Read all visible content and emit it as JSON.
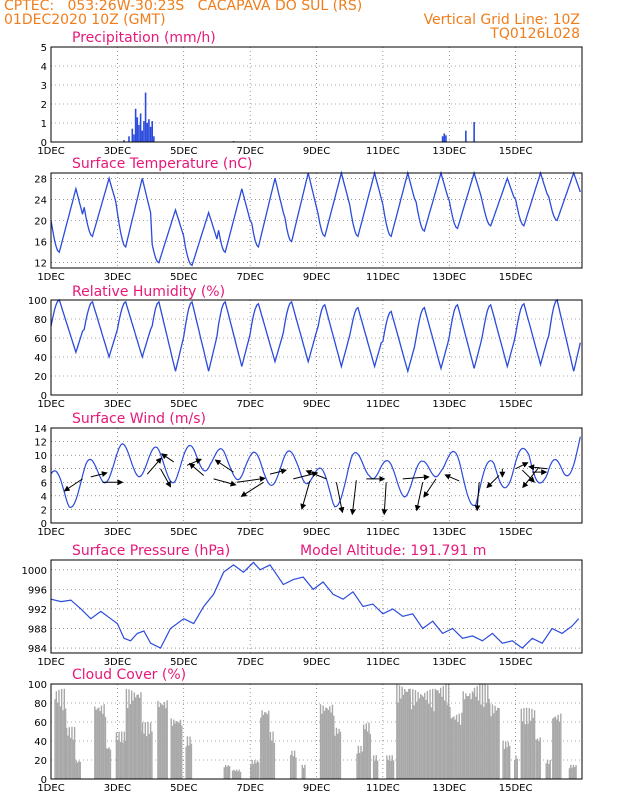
{
  "header": {
    "line1": "CPTEC:   053:26W-30:23S   CACAPAVA DO SUL (RS)",
    "line2": "01DEC2020 10Z (GMT)",
    "grid_note": "Vertical Grid Line: 10Z",
    "code": "TQ0126L028"
  },
  "colors": {
    "header": "#f07d1a",
    "title": "#e6197a",
    "line": "#2b4bdc",
    "cloud": "#a8a8a8",
    "arrow": "#000000"
  },
  "chart_data": [
    {
      "id": "precip",
      "type": "bar",
      "title": "Precipitation (mm/h)",
      "ylim": [
        0,
        5
      ],
      "yticks": [
        0,
        1,
        2,
        3,
        4,
        5
      ],
      "xlabels": [
        "1DEC",
        "3DEC",
        "5DEC",
        "7DEC",
        "9DEC",
        "11DEC",
        "13DEC",
        "15DEC"
      ],
      "bars": [
        {
          "day": 2.2,
          "v": 0.1
        },
        {
          "day": 2.35,
          "v": 0.3
        },
        {
          "day": 2.45,
          "v": 0.7
        },
        {
          "day": 2.5,
          "v": 0.4
        },
        {
          "day": 2.55,
          "v": 1.75
        },
        {
          "day": 2.6,
          "v": 1.3
        },
        {
          "day": 2.65,
          "v": 0.9
        },
        {
          "day": 2.7,
          "v": 1.5
        },
        {
          "day": 2.75,
          "v": 0.6
        },
        {
          "day": 2.8,
          "v": 1.1
        },
        {
          "day": 2.85,
          "v": 2.6
        },
        {
          "day": 2.9,
          "v": 1.0
        },
        {
          "day": 2.95,
          "v": 1.2
        },
        {
          "day": 3.0,
          "v": 0.8
        },
        {
          "day": 3.05,
          "v": 1.1
        },
        {
          "day": 3.1,
          "v": 0.3
        },
        {
          "day": 5.5,
          "v": 0.05
        },
        {
          "day": 11.8,
          "v": 0.3
        },
        {
          "day": 11.85,
          "v": 0.45
        },
        {
          "day": 11.9,
          "v": 0.35
        },
        {
          "day": 12.5,
          "v": 0.6
        },
        {
          "day": 12.75,
          "v": 1.05
        }
      ]
    },
    {
      "id": "temp",
      "type": "line",
      "title": "Surface Temperature (nC)",
      "ylim": [
        11,
        29
      ],
      "yticks": [
        12,
        16,
        20,
        24,
        28
      ],
      "xlabels": [
        "1DEC",
        "3DEC",
        "5DEC",
        "7DEC",
        "9DEC",
        "11DEC",
        "13DEC",
        "15DEC"
      ],
      "min": [
        14,
        17,
        15,
        12,
        11.5,
        14,
        15,
        16,
        17,
        17,
        17,
        18,
        18.5,
        19,
        19,
        20,
        20.5
      ],
      "max": [
        26,
        28,
        28,
        22,
        21.5,
        26,
        28,
        29,
        29,
        29,
        29,
        29,
        29,
        28,
        29,
        29,
        29
      ]
    },
    {
      "id": "rh",
      "type": "line",
      "title": "Relative Humidity (%)",
      "ylim": [
        0,
        100
      ],
      "yticks": [
        0,
        20,
        40,
        60,
        80,
        100
      ],
      "xlabels": [
        "1DEC",
        "3DEC",
        "5DEC",
        "7DEC",
        "9DEC",
        "11DEC",
        "13DEC",
        "15DEC"
      ],
      "min": [
        45,
        40,
        40,
        25,
        25,
        30,
        35,
        35,
        30,
        30,
        25,
        28,
        28,
        30,
        32,
        25,
        35
      ],
      "max": [
        100,
        98,
        98,
        98,
        98,
        98,
        96,
        98,
        95,
        92,
        88,
        92,
        95,
        95,
        96,
        100,
        98
      ]
    },
    {
      "id": "wind",
      "type": "line",
      "title": "Surface Wind (m/s)",
      "ylim": [
        0,
        14
      ],
      "yticks": [
        0,
        2,
        4,
        6,
        8,
        10,
        12,
        14
      ],
      "xlabels": [
        "1DEC",
        "3DEC",
        "5DEC",
        "7DEC",
        "9DEC",
        "11DEC",
        "13DEC",
        "15DEC"
      ],
      "speed": [
        6,
        4,
        7,
        8,
        9.5,
        9,
        9,
        8,
        9.5,
        10,
        8,
        9,
        7.5,
        8,
        9,
        6.5,
        4,
        8,
        9,
        7,
        6,
        7,
        9.5,
        8,
        4,
        8,
        7,
        10,
        6.5,
        8,
        12.5
      ],
      "arrows": [
        {
          "day": 0.95,
          "y": 6.5,
          "dx": -18,
          "dy": 12
        },
        {
          "day": 1.2,
          "y": 6.8,
          "dx": 16,
          "dy": -4
        },
        {
          "day": 1.55,
          "y": 6.0,
          "dx": 20,
          "dy": 0
        },
        {
          "day": 2.9,
          "y": 7.2,
          "dx": 14,
          "dy": -16
        },
        {
          "day": 3.3,
          "y": 8.0,
          "dx": 10,
          "dy": 18
        },
        {
          "day": 3.7,
          "y": 9.0,
          "dx": -12,
          "dy": -8
        },
        {
          "day": 4.1,
          "y": 8.5,
          "dx": 14,
          "dy": -6
        },
        {
          "day": 4.6,
          "y": 7.0,
          "dx": -14,
          "dy": -12
        },
        {
          "day": 4.9,
          "y": 6.5,
          "dx": 22,
          "dy": 6
        },
        {
          "day": 5.5,
          "y": 7.5,
          "dx": -18,
          "dy": -12
        },
        {
          "day": 5.6,
          "y": 6.0,
          "dx": 28,
          "dy": -4
        },
        {
          "day": 6.4,
          "y": 6.0,
          "dx": -22,
          "dy": 14
        },
        {
          "day": 6.6,
          "y": 7.2,
          "dx": 16,
          "dy": -4
        },
        {
          "day": 7.3,
          "y": 6.5,
          "dx": 24,
          "dy": -6
        },
        {
          "day": 7.8,
          "y": 6.2,
          "dx": -8,
          "dy": 28
        },
        {
          "day": 8.3,
          "y": 6.5,
          "dx": -20,
          "dy": -8
        },
        {
          "day": 8.6,
          "y": 6.0,
          "dx": 6,
          "dy": 30
        },
        {
          "day": 9.2,
          "y": 6.3,
          "dx": -4,
          "dy": 34
        },
        {
          "day": 9.5,
          "y": 6.5,
          "dx": 18,
          "dy": 0
        },
        {
          "day": 10.1,
          "y": 6.0,
          "dx": -2,
          "dy": 32
        },
        {
          "day": 10.6,
          "y": 6.5,
          "dx": 26,
          "dy": -2
        },
        {
          "day": 11.2,
          "y": 6.0,
          "dx": -6,
          "dy": 28
        },
        {
          "day": 11.6,
          "y": 6.5,
          "dx": -12,
          "dy": 18
        },
        {
          "day": 12.3,
          "y": 6.2,
          "dx": -14,
          "dy": -6
        },
        {
          "day": 12.9,
          "y": 6.0,
          "dx": -2,
          "dy": 28
        },
        {
          "day": 13.5,
          "y": 7.0,
          "dx": -12,
          "dy": 12
        },
        {
          "day": 13.6,
          "y": 8.0,
          "dx": 0,
          "dy": 8
        },
        {
          "day": 14.0,
          "y": 8.0,
          "dx": 12,
          "dy": -6
        },
        {
          "day": 14.2,
          "y": 7.8,
          "dx": 12,
          "dy": 12
        },
        {
          "day": 14.5,
          "y": 7.5,
          "dx": 14,
          "dy": 0
        },
        {
          "day": 14.7,
          "y": 8.2,
          "dx": -16,
          "dy": 20
        },
        {
          "day": 14.95,
          "y": 8.0,
          "dx": -18,
          "dy": -2
        }
      ]
    },
    {
      "id": "pres",
      "type": "line",
      "title": "Surface Pressure (hPa)",
      "extra_title": "Model Altitude: 191.791 m",
      "ylim": [
        983,
        1002
      ],
      "yticks": [
        984,
        988,
        992,
        996,
        1000
      ],
      "xlabels": [
        "1DEC",
        "3DEC",
        "5DEC",
        "7DEC",
        "9DEC",
        "11DEC",
        "13DEC",
        "15DEC"
      ],
      "points": [
        [
          0,
          994
        ],
        [
          0.3,
          993.5
        ],
        [
          0.6,
          993.8
        ],
        [
          0.9,
          992
        ],
        [
          1.2,
          990
        ],
        [
          1.5,
          991.5
        ],
        [
          1.8,
          990
        ],
        [
          2.0,
          989
        ],
        [
          2.2,
          986
        ],
        [
          2.4,
          985.5
        ],
        [
          2.6,
          987
        ],
        [
          2.8,
          987.5
        ],
        [
          3.0,
          985
        ],
        [
          3.3,
          984
        ],
        [
          3.6,
          988
        ],
        [
          4.0,
          990
        ],
        [
          4.3,
          989
        ],
        [
          4.6,
          992.5
        ],
        [
          4.9,
          995
        ],
        [
          5.2,
          999.5
        ],
        [
          5.5,
          1001
        ],
        [
          5.8,
          999.5
        ],
        [
          6.1,
          1001.5
        ],
        [
          6.3,
          1000
        ],
        [
          6.6,
          1001
        ],
        [
          6.8,
          999
        ],
        [
          7.0,
          997
        ],
        [
          7.3,
          998
        ],
        [
          7.6,
          998.5
        ],
        [
          7.9,
          996
        ],
        [
          8.2,
          997.5
        ],
        [
          8.5,
          995
        ],
        [
          8.8,
          994
        ],
        [
          9.1,
          995.5
        ],
        [
          9.4,
          992.5
        ],
        [
          9.7,
          993
        ],
        [
          10.0,
          991
        ],
        [
          10.3,
          992
        ],
        [
          10.6,
          990.5
        ],
        [
          10.9,
          991
        ],
        [
          11.2,
          988
        ],
        [
          11.5,
          989.5
        ],
        [
          11.8,
          987
        ],
        [
          12.1,
          988
        ],
        [
          12.4,
          986
        ],
        [
          12.7,
          986.5
        ],
        [
          13.0,
          985.5
        ],
        [
          13.3,
          987
        ],
        [
          13.6,
          985
        ],
        [
          13.9,
          985.5
        ],
        [
          14.2,
          984
        ],
        [
          14.5,
          986
        ],
        [
          14.8,
          985
        ],
        [
          15.1,
          988
        ],
        [
          15.4,
          987
        ],
        [
          15.7,
          988.5
        ],
        [
          15.9,
          990
        ]
      ]
    },
    {
      "id": "cloud",
      "type": "bar",
      "title": "Cloud Cover (%)",
      "ylim": [
        0,
        100
      ],
      "yticks": [
        0,
        20,
        40,
        60,
        80,
        100
      ],
      "xlabels": [
        "1DEC",
        "3DEC",
        "5DEC",
        "7DEC",
        "9DEC",
        "11DEC",
        "13DEC",
        "15DEC"
      ],
      "blocks": [
        {
          "from": 0.1,
          "to": 0.45,
          "v": 95
        },
        {
          "from": 0.45,
          "to": 0.7,
          "v": 55
        },
        {
          "from": 0.7,
          "to": 0.9,
          "v": 20
        },
        {
          "from": 1.3,
          "to": 1.65,
          "v": 80
        },
        {
          "from": 1.65,
          "to": 1.8,
          "v": 35
        },
        {
          "from": 1.95,
          "to": 2.25,
          "v": 50
        },
        {
          "from": 2.25,
          "to": 2.7,
          "v": 95
        },
        {
          "from": 2.7,
          "to": 3.05,
          "v": 60
        },
        {
          "from": 3.2,
          "to": 3.5,
          "v": 85
        },
        {
          "from": 3.6,
          "to": 3.95,
          "v": 65
        },
        {
          "from": 4.05,
          "to": 4.25,
          "v": 45
        },
        {
          "from": 5.2,
          "to": 5.4,
          "v": 15
        },
        {
          "from": 5.45,
          "to": 5.7,
          "v": 10
        },
        {
          "from": 6.0,
          "to": 6.25,
          "v": 20
        },
        {
          "from": 6.3,
          "to": 6.55,
          "v": 75
        },
        {
          "from": 6.55,
          "to": 6.75,
          "v": 50
        },
        {
          "from": 7.2,
          "to": 7.4,
          "v": 30
        },
        {
          "from": 7.55,
          "to": 7.65,
          "v": 15
        },
        {
          "from": 8.1,
          "to": 8.5,
          "v": 80
        },
        {
          "from": 8.5,
          "to": 8.7,
          "v": 55
        },
        {
          "from": 9.2,
          "to": 9.4,
          "v": 35
        },
        {
          "from": 9.4,
          "to": 9.6,
          "v": 60
        },
        {
          "from": 9.7,
          "to": 9.85,
          "v": 25
        },
        {
          "from": 10.1,
          "to": 10.3,
          "v": 25
        },
        {
          "from": 10.4,
          "to": 10.8,
          "v": 100
        },
        {
          "from": 10.8,
          "to": 11.6,
          "v": 95
        },
        {
          "from": 11.6,
          "to": 12.0,
          "v": 100
        },
        {
          "from": 12.0,
          "to": 12.4,
          "v": 70
        },
        {
          "from": 12.4,
          "to": 12.7,
          "v": 95
        },
        {
          "from": 12.7,
          "to": 13.2,
          "v": 100
        },
        {
          "from": 13.2,
          "to": 13.5,
          "v": 80
        },
        {
          "from": 13.6,
          "to": 13.8,
          "v": 40
        },
        {
          "from": 13.95,
          "to": 14.05,
          "v": 25
        },
        {
          "from": 14.15,
          "to": 14.55,
          "v": 75
        },
        {
          "from": 14.6,
          "to": 14.75,
          "v": 45
        },
        {
          "from": 14.9,
          "to": 15.05,
          "v": 20
        },
        {
          "from": 15.1,
          "to": 15.35,
          "v": 70
        },
        {
          "from": 15.6,
          "to": 15.8,
          "v": 15
        }
      ]
    }
  ]
}
